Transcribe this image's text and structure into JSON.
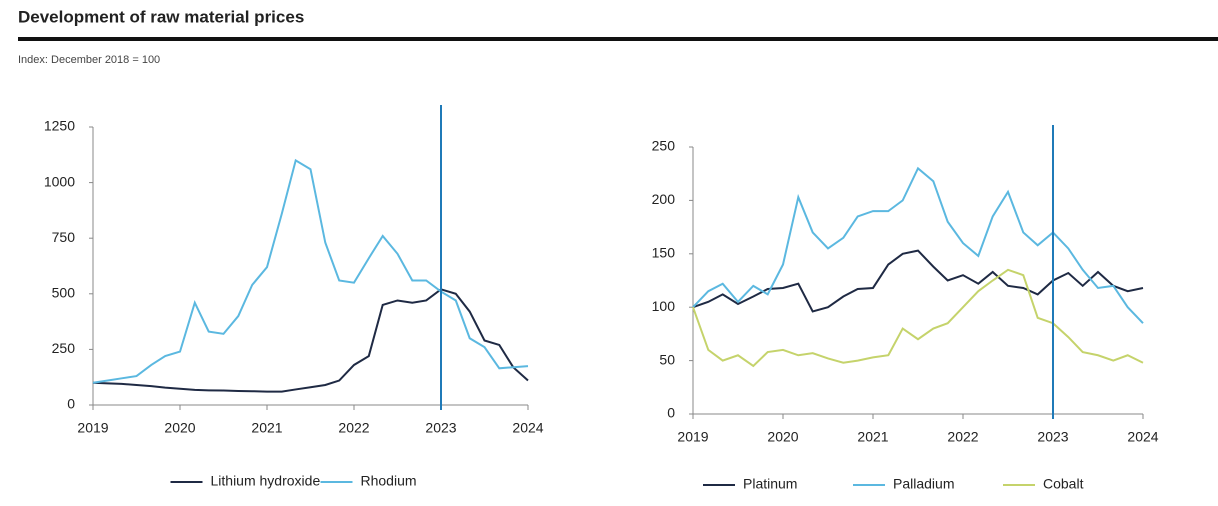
{
  "header": {
    "title": "Development of raw material prices",
    "subtitle": "Index: December 2018 = 100"
  },
  "chart_data": [
    {
      "type": "line",
      "x": [
        2019,
        2019.17,
        2019.33,
        2019.5,
        2019.67,
        2019.83,
        2020,
        2020.17,
        2020.33,
        2020.5,
        2020.67,
        2020.83,
        2021,
        2021.17,
        2021.33,
        2021.5,
        2021.67,
        2021.83,
        2022,
        2022.17,
        2022.33,
        2022.5,
        2022.67,
        2022.83,
        2023,
        2023.17,
        2023.33,
        2023.5,
        2023.67,
        2023.83,
        2024
      ],
      "series": [
        {
          "name": "Lithium hydroxide",
          "color": "#1f2a44",
          "values": [
            100,
            97,
            95,
            90,
            85,
            78,
            73,
            68,
            66,
            65,
            63,
            62,
            60,
            60,
            70,
            80,
            90,
            110,
            180,
            220,
            450,
            470,
            460,
            470,
            520,
            500,
            420,
            290,
            270,
            170,
            110
          ]
        },
        {
          "name": "Rhodium",
          "color": "#5bb8e0",
          "values": [
            100,
            110,
            120,
            130,
            180,
            220,
            240,
            460,
            330,
            320,
            400,
            540,
            620,
            860,
            1100,
            1060,
            730,
            560,
            550,
            660,
            760,
            680,
            560,
            560,
            510,
            470,
            300,
            260,
            165,
            170,
            175
          ]
        }
      ],
      "xlim": [
        2019,
        2024
      ],
      "xticks": [
        2019,
        2020,
        2021,
        2022,
        2023,
        2024
      ],
      "ylim": [
        0,
        1250
      ],
      "yticks": [
        0,
        250,
        500,
        750,
        1000,
        1250
      ],
      "vline": 2023,
      "vline_color": "#1f7ab8",
      "grid": false
    },
    {
      "type": "line",
      "x": [
        2019,
        2019.17,
        2019.33,
        2019.5,
        2019.67,
        2019.83,
        2020,
        2020.17,
        2020.33,
        2020.5,
        2020.67,
        2020.83,
        2021,
        2021.17,
        2021.33,
        2021.5,
        2021.67,
        2021.83,
        2022,
        2022.17,
        2022.33,
        2022.5,
        2022.67,
        2022.83,
        2023,
        2023.17,
        2023.33,
        2023.5,
        2023.67,
        2023.83,
        2024
      ],
      "series": [
        {
          "name": "Platinum",
          "color": "#1f2a44",
          "values": [
            100,
            105,
            112,
            103,
            110,
            117,
            118,
            122,
            96,
            100,
            110,
            117,
            118,
            140,
            150,
            153,
            138,
            125,
            130,
            122,
            133,
            120,
            118,
            112,
            125,
            132,
            120,
            133,
            120,
            115,
            118
          ]
        },
        {
          "name": "Palladium",
          "color": "#5bb8e0",
          "values": [
            100,
            115,
            122,
            105,
            120,
            112,
            140,
            203,
            170,
            155,
            165,
            185,
            190,
            190,
            200,
            230,
            218,
            180,
            160,
            148,
            185,
            208,
            170,
            158,
            170,
            155,
            135,
            118,
            120,
            100,
            85
          ]
        },
        {
          "name": "Cobalt",
          "color": "#c5d36b",
          "values": [
            100,
            60,
            50,
            55,
            45,
            58,
            60,
            55,
            57,
            52,
            48,
            50,
            53,
            55,
            80,
            70,
            80,
            85,
            100,
            115,
            125,
            135,
            130,
            90,
            85,
            72,
            58,
            55,
            50,
            55,
            48
          ]
        }
      ],
      "xlim": [
        2019,
        2024
      ],
      "xticks": [
        2019,
        2020,
        2021,
        2022,
        2023,
        2024
      ],
      "ylim": [
        0,
        250
      ],
      "yticks": [
        0,
        50,
        100,
        150,
        200,
        250
      ],
      "vline": 2023,
      "vline_color": "#1f7ab8",
      "grid": false
    }
  ]
}
